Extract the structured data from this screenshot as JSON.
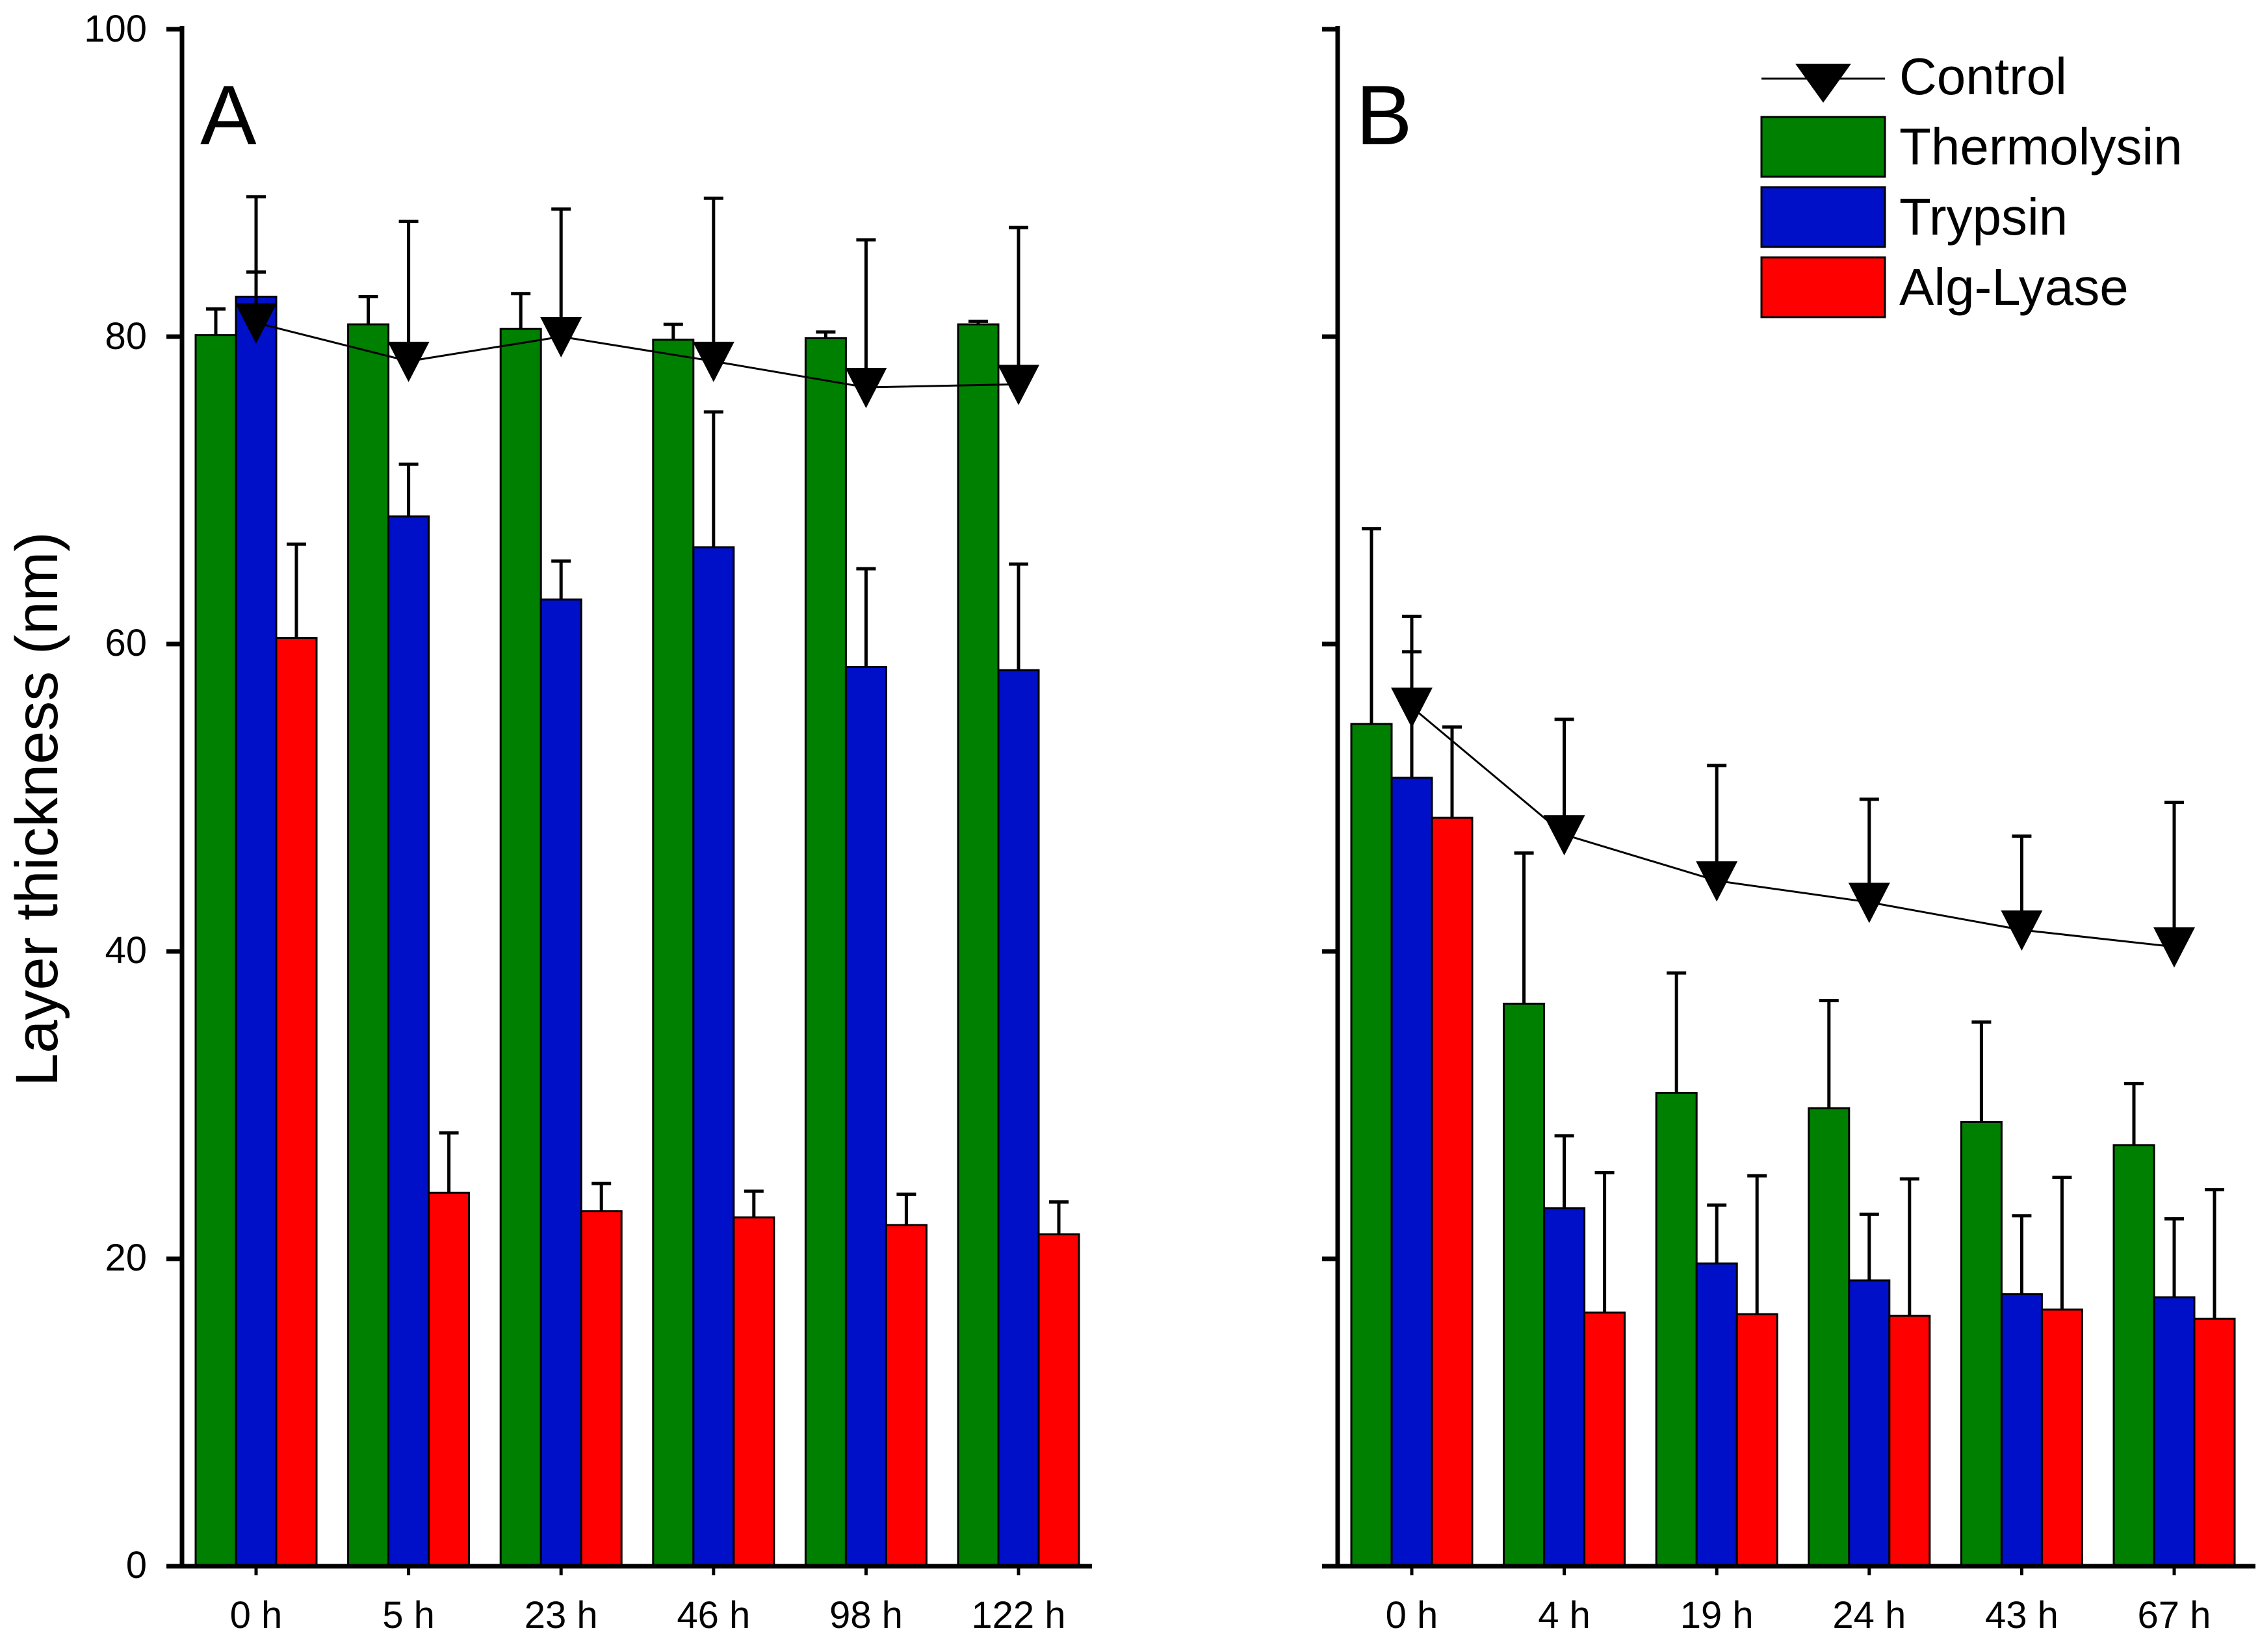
{
  "figure": {
    "ylabel": "Layer thickness (nm)",
    "yticks": [
      "0",
      "20",
      "40",
      "60",
      "80",
      "100"
    ]
  },
  "legend": {
    "control": "Control",
    "thermolysin": "Thermolysin",
    "trypsin": "Trypsin",
    "alglyase": "Alg-Lyase"
  },
  "colors": {
    "thermolysin": "#008000",
    "trypsin": "#0010c8",
    "alglyase": "#ff0000",
    "control": "#000000"
  },
  "chart_data": [
    {
      "type": "bar",
      "panel_label": "A",
      "title": "",
      "xlabel": "",
      "ylabel": "Layer thickness (nm)",
      "ylim": [
        0,
        100
      ],
      "categories": [
        "0 h",
        "5 h",
        "23 h",
        "46 h",
        "98 h",
        "122 h"
      ],
      "series": [
        {
          "name": "Thermolysin",
          "values": [
            80.1,
            80.8,
            80.5,
            79.8,
            79.9,
            80.8
          ],
          "errors": [
            1.7,
            1.8,
            2.3,
            1.0,
            0.4,
            0.2
          ]
        },
        {
          "name": "Trypsin",
          "values": [
            82.6,
            68.3,
            62.9,
            66.3,
            58.5,
            58.3
          ],
          "errors": [
            1.6,
            3.4,
            2.5,
            8.8,
            6.4,
            6.9
          ]
        },
        {
          "name": "Alg-Lyase",
          "values": [
            60.4,
            24.3,
            23.1,
            22.7,
            22.2,
            21.6
          ],
          "errors": [
            6.1,
            3.9,
            1.8,
            1.7,
            2.0,
            2.1
          ]
        }
      ],
      "line_series": {
        "name": "Control",
        "values": [
          80.9,
          78.4,
          80.0,
          78.4,
          76.7,
          76.9
        ],
        "errors": [
          8.2,
          9.1,
          8.3,
          10.6,
          9.6,
          10.2
        ]
      }
    },
    {
      "type": "bar",
      "panel_label": "B",
      "title": "",
      "xlabel": "",
      "ylabel": "",
      "ylim": [
        0,
        100
      ],
      "categories": [
        "0 h",
        "4 h",
        "19 h",
        "24 h",
        "43 h",
        "67 h"
      ],
      "series": [
        {
          "name": "Thermolysin",
          "values": [
            54.8,
            36.6,
            30.8,
            29.8,
            28.9,
            27.4
          ],
          "errors": [
            12.7,
            9.8,
            7.8,
            7.0,
            6.5,
            4.0
          ]
        },
        {
          "name": "Trypsin",
          "values": [
            51.3,
            23.3,
            19.7,
            18.6,
            17.7,
            17.5
          ],
          "errors": [
            8.2,
            4.7,
            3.8,
            4.3,
            5.1,
            5.1
          ]
        },
        {
          "name": "Alg-Lyase",
          "values": [
            48.7,
            16.5,
            16.4,
            16.3,
            16.7,
            16.1
          ],
          "errors": [
            5.9,
            9.1,
            9.0,
            8.9,
            8.6,
            8.4
          ]
        }
      ],
      "line_series": {
        "name": "Control",
        "values": [
          55.9,
          47.6,
          44.6,
          43.2,
          41.4,
          40.3
        ],
        "errors": [
          5.9,
          7.5,
          7.5,
          6.7,
          6.1,
          9.4
        ]
      }
    }
  ]
}
